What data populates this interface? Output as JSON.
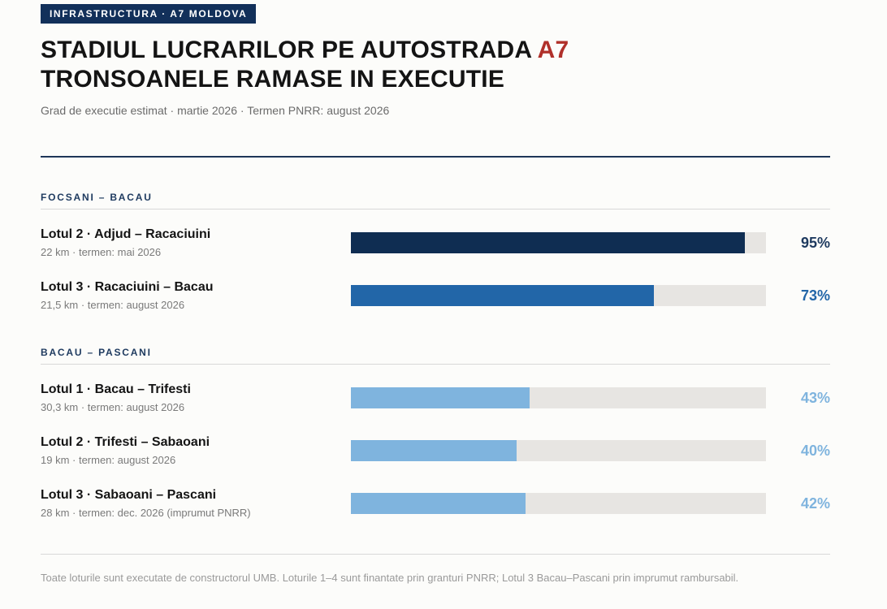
{
  "header": {
    "kicker": "INFRASTRUCTURA · A7 MOLDOVA",
    "title_line1_prefix": "STADIUL LUCRARILOR PE AUTOSTRADA",
    "title_line1_accent": "A7",
    "title_line2": "TRONSOANELE RAMASE IN EXECUTIE",
    "subtitle": "Grad de executie estimat · martie 2026 · Termen PNRR: august 2026"
  },
  "colors": {
    "accent_red": "#b0302a",
    "navy": "#12305a",
    "high": "#0f2d52",
    "mid": "#2266a8",
    "low": "#7fb4de",
    "track": "#e7e5e2"
  },
  "chart_data": {
    "type": "bar",
    "orientation": "horizontal",
    "xlim": [
      0,
      100
    ],
    "unit": "%",
    "groups": [
      {
        "name": "FOCSANI – BACAU",
        "items": [
          {
            "label": "Lotul 2 · Adjud – Racaciuini",
            "meta": "22 km · termen: mai 2026",
            "value": 95,
            "value_label": "95%",
            "color": "#0f2d52"
          },
          {
            "label": "Lotul 3 · Racaciuini – Bacau",
            "meta": "21,5 km · termen: august 2026",
            "value": 73,
            "value_label": "73%",
            "color": "#2266a8"
          }
        ]
      },
      {
        "name": "BACAU – PASCANI",
        "items": [
          {
            "label": "Lotul 1 · Bacau – Trifesti",
            "meta": "30,3 km · termen: august 2026",
            "value": 43,
            "value_label": "43%",
            "color": "#7fb4de"
          },
          {
            "label": "Lotul 2 · Trifesti – Sabaoani",
            "meta": "19 km · termen: august 2026",
            "value": 40,
            "value_label": "40%",
            "color": "#7fb4de"
          },
          {
            "label": "Lotul 3 · Sabaoani – Pascani",
            "meta": "28 km · termen: dec. 2026 (imprumut PNRR)",
            "value": 42,
            "value_label": "42%",
            "color": "#7fb4de"
          }
        ]
      }
    ]
  },
  "footnote": "Toate loturile sunt executate de constructorul UMB. Loturile 1–4 sunt finantate prin granturi PNRR; Lotul 3 Bacau–Pascani prin imprumut rambursabil."
}
